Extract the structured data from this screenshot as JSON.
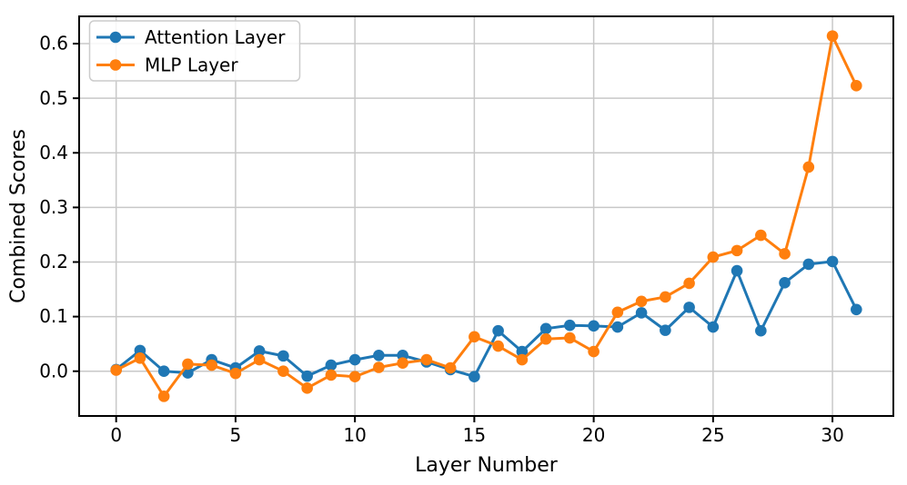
{
  "chart_data": {
    "type": "line",
    "title": "",
    "xlabel": "Layer Number",
    "ylabel": "Combined Scores",
    "x": [
      0,
      1,
      2,
      3,
      4,
      5,
      6,
      7,
      8,
      9,
      10,
      11,
      12,
      13,
      14,
      15,
      16,
      17,
      18,
      19,
      20,
      21,
      22,
      23,
      24,
      25,
      26,
      27,
      28,
      29,
      30,
      31
    ],
    "series": [
      {
        "name": "Attention Layer",
        "color": "#1f77b4",
        "marker": "circle",
        "values": [
          0.003,
          0.038,
          0.0,
          -0.003,
          0.021,
          0.006,
          0.037,
          0.028,
          -0.009,
          0.011,
          0.021,
          0.029,
          0.029,
          0.017,
          0.003,
          -0.01,
          0.074,
          0.036,
          0.078,
          0.084,
          0.083,
          0.081,
          0.107,
          0.075,
          0.117,
          0.081,
          0.184,
          0.074,
          0.162,
          0.196,
          0.201,
          0.113
        ]
      },
      {
        "name": "MLP Layer",
        "color": "#ff7f0e",
        "marker": "circle",
        "values": [
          0.002,
          0.024,
          -0.046,
          0.013,
          0.011,
          -0.004,
          0.021,
          0.0,
          -0.031,
          -0.007,
          -0.01,
          0.007,
          0.015,
          0.021,
          0.006,
          0.063,
          0.046,
          0.021,
          0.059,
          0.061,
          0.036,
          0.108,
          0.128,
          0.136,
          0.161,
          0.209,
          0.221,
          0.249,
          0.215,
          0.374,
          0.614,
          0.523
        ]
      }
    ],
    "xlim": [
      -1.55,
      32.55
    ],
    "ylim": [
      -0.082,
      0.65
    ],
    "xticks": [
      0,
      5,
      10,
      15,
      20,
      25,
      30
    ],
    "xtick_labels": [
      "0",
      "5",
      "10",
      "15",
      "20",
      "25",
      "30"
    ],
    "yticks": [
      0.0,
      0.1,
      0.2,
      0.3,
      0.4,
      0.5,
      0.6
    ],
    "ytick_labels": [
      "0.0",
      "0.1",
      "0.2",
      "0.3",
      "0.4",
      "0.5",
      "0.6"
    ],
    "grid": true,
    "grid_color": "#c8c8c8",
    "spine_color": "#000000",
    "tick_color": "#000000",
    "text_color": "#000000",
    "background": "#ffffff",
    "legend": {
      "position": "upper-left",
      "labels": [
        "Attention Layer",
        "MLP Layer"
      ],
      "border_color": "#cccccc",
      "background": "rgba(255,255,255,0.85)"
    }
  }
}
